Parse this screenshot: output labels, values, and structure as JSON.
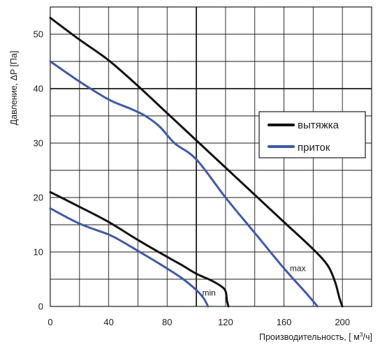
{
  "chart_data": {
    "type": "line",
    "xlabel_main": "Производительность, [ м",
    "xlabel_sup": "3",
    "xlabel_end": "/ч]",
    "ylabel": "Давление, ΔP [Па]",
    "xlim": [
      0,
      220
    ],
    "ylim": [
      0,
      55
    ],
    "x_ticks": [
      0,
      40,
      80,
      120,
      160,
      200
    ],
    "y_ticks": [
      0,
      10,
      20,
      30,
      40,
      50
    ],
    "x_grid_step": 20,
    "y_grid_step": 5,
    "x_major_lines": [
      100
    ],
    "y_major_lines": [
      40
    ],
    "grid": true,
    "legend_position": "right-middle",
    "series": [
      {
        "name": "вытяжка",
        "color": "#111111",
        "curves": [
          {
            "label": "max",
            "points": [
              [
                0,
                53
              ],
              [
                20,
                49
              ],
              [
                40,
                45.2
              ],
              [
                60,
                40.5
              ],
              [
                80,
                35.5
              ],
              [
                100,
                30.5
              ],
              [
                120,
                25.5
              ],
              [
                140,
                20.5
              ],
              [
                160,
                15.5
              ],
              [
                180,
                10.5
              ],
              [
                190,
                7.5
              ],
              [
                195,
                4.5
              ],
              [
                198,
                1.5
              ],
              [
                200,
                0
              ]
            ]
          },
          {
            "label": "min",
            "points": [
              [
                0,
                21
              ],
              [
                20,
                18.3
              ],
              [
                40,
                15.5
              ],
              [
                60,
                12.2
              ],
              [
                80,
                9.1
              ],
              [
                90,
                7.6
              ],
              [
                100,
                6
              ],
              [
                110,
                4.8
              ],
              [
                117,
                3.7
              ],
              [
                120,
                2.8
              ],
              [
                121,
                1
              ],
              [
                122,
                0
              ]
            ]
          }
        ]
      },
      {
        "name": "приток",
        "color": "#3d5aa5",
        "curves": [
          {
            "label": "max",
            "points": [
              [
                0,
                45
              ],
              [
                20,
                41.3
              ],
              [
                40,
                38
              ],
              [
                55,
                36.3
              ],
              [
                65,
                35
              ],
              [
                75,
                33
              ],
              [
                85,
                30
              ],
              [
                100,
                27
              ],
              [
                120,
                20
              ],
              [
                140,
                13.5
              ],
              [
                160,
                7
              ],
              [
                175,
                2.5
              ],
              [
                183,
                0
              ]
            ]
          },
          {
            "label": "min",
            "points": [
              [
                0,
                18
              ],
              [
                20,
                15.2
              ],
              [
                40,
                13.2
              ],
              [
                50,
                11.8
              ],
              [
                60,
                10.2
              ],
              [
                75,
                7.8
              ],
              [
                90,
                5.2
              ],
              [
                100,
                3
              ],
              [
                105,
                1.5
              ],
              [
                108,
                0
              ]
            ]
          }
        ]
      }
    ],
    "annotations": [
      {
        "text": "max",
        "x": 164,
        "y": 6.5
      },
      {
        "text": "min",
        "x": 104,
        "y": 2
      }
    ]
  }
}
